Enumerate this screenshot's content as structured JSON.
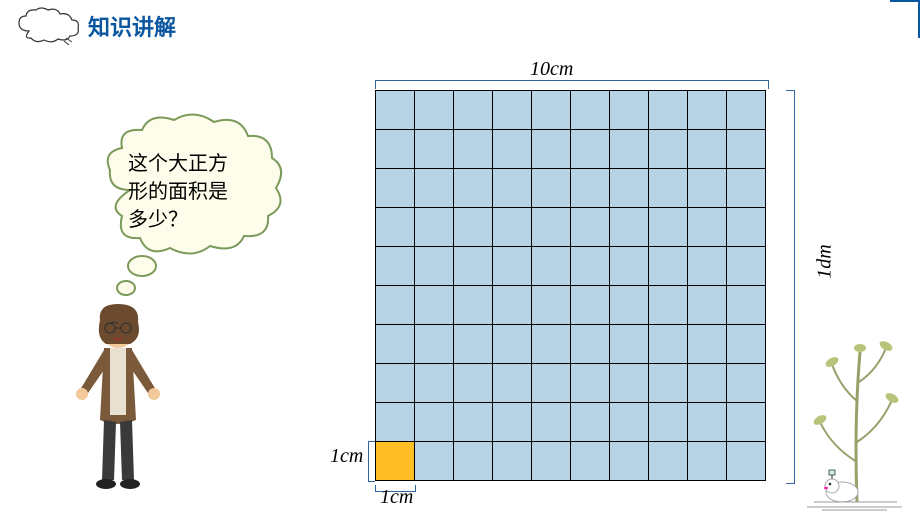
{
  "title": "知识讲解",
  "speech": {
    "line1": "这个大正方",
    "line2": "形的面积是",
    "line3": "多少？"
  },
  "labels": {
    "top": "10cm",
    "right": "1dm",
    "left1cm": "1cm",
    "bottom1cm": "1cm"
  },
  "grid": {
    "rows": 10,
    "cols": 10,
    "cell_bg": "#b9d3e6",
    "highlight_bg": "#ffbf24",
    "border_color": "#000000",
    "highlight_cell": {
      "row": 9,
      "col": 0
    }
  },
  "colors": {
    "title": "#0a57a0",
    "bracket": "#3264a0",
    "cloud_stroke": "#333333",
    "speech_fill": "#fefcea",
    "speech_stroke": "#7b9a5a"
  }
}
